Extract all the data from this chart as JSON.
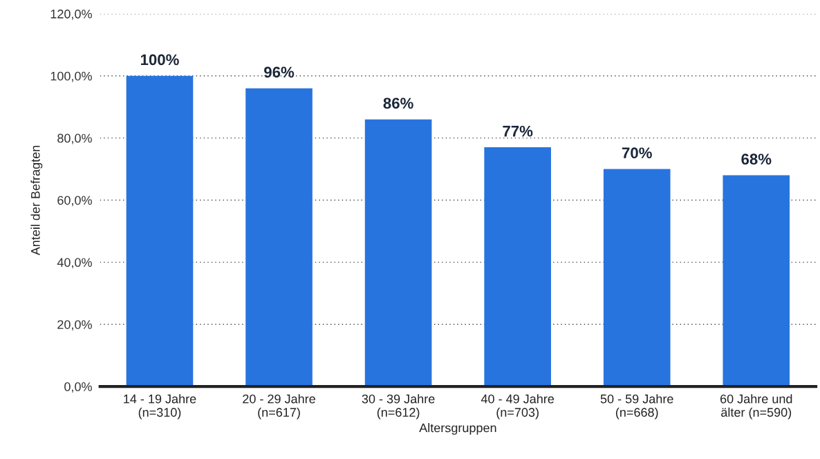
{
  "chart_data": {
    "type": "bar",
    "xlabel": "Altersgruppen",
    "ylabel": "Anteil der Befragten",
    "categories": [
      "14 - 19 Jahre\n(n=310)",
      "20 - 29 Jahre\n(n=617)",
      "30 - 39 Jahre\n(n=612)",
      "40 - 49 Jahre\n(n=703)",
      "50 - 59 Jahre\n(n=668)",
      "60 Jahre und\nälter (n=590)"
    ],
    "values": [
      100,
      96,
      86,
      77,
      70,
      68
    ],
    "value_labels": [
      "100%",
      "96%",
      "86%",
      "77%",
      "70%",
      "68%"
    ],
    "color": "#2874df",
    "ylim": [
      0,
      120
    ],
    "yticks": [
      {
        "value": 0,
        "label": "0,0%"
      },
      {
        "value": 20,
        "label": "20,0%"
      },
      {
        "value": 40,
        "label": "40,0%"
      },
      {
        "value": 60,
        "label": "60,0%"
      },
      {
        "value": 80,
        "label": "80,0%"
      },
      {
        "value": 100,
        "label": "100,0%"
      },
      {
        "value": 120,
        "label": "120,0%"
      }
    ],
    "grid": "y"
  }
}
